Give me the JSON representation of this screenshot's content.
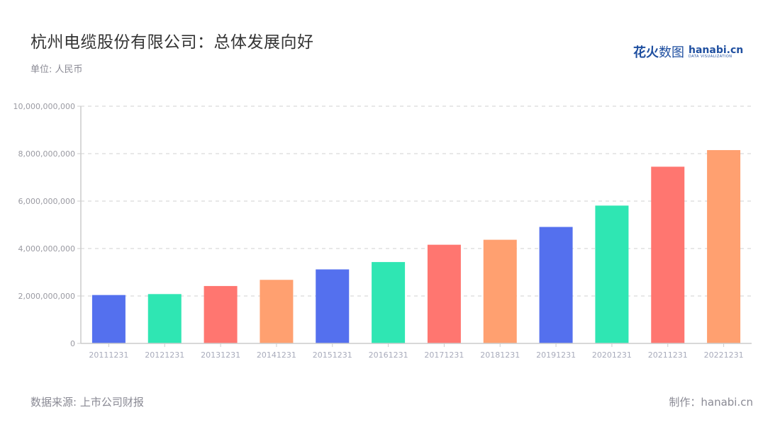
{
  "header": {
    "title": "杭州电缆股份有限公司：总体发展向好",
    "unit": "单位: 人民币"
  },
  "logo": {
    "cn_bold": "花火",
    "cn_thin": "数图",
    "en_main": "hanabi.cn",
    "en_sub": "DATA VISUALIZATION"
  },
  "footer": {
    "source": "数据来源: 上市公司财报",
    "credit": "制作：hanabi.cn"
  },
  "colors": {
    "palette": [
      "#5470ee",
      "#2fe6b3",
      "#ff7670",
      "#ffa070"
    ],
    "grid": "#e0e0e0",
    "axis": "#cccccc"
  },
  "chart_data": {
    "type": "bar",
    "title": "杭州电缆股份有限公司：总体发展向好",
    "subtitle": "单位: 人民币",
    "xlabel": "",
    "ylabel": "",
    "ylim": [
      0,
      10000000000
    ],
    "yticks": [
      0,
      2000000000,
      4000000000,
      6000000000,
      8000000000,
      10000000000
    ],
    "ytick_labels": [
      "0",
      "2,000,000,000",
      "4,000,000,000",
      "6,000,000,000",
      "8,000,000,000",
      "10,000,000,000"
    ],
    "grid": true,
    "legend": false,
    "categories": [
      "20111231",
      "20121231",
      "20131231",
      "20141231",
      "20151231",
      "20161231",
      "20171231",
      "20181231",
      "20191231",
      "20201231",
      "20211231",
      "20221231"
    ],
    "values": [
      2040000000,
      2080000000,
      2420000000,
      2680000000,
      3120000000,
      3430000000,
      4160000000,
      4370000000,
      4910000000,
      5810000000,
      7450000000,
      8150000000
    ]
  }
}
